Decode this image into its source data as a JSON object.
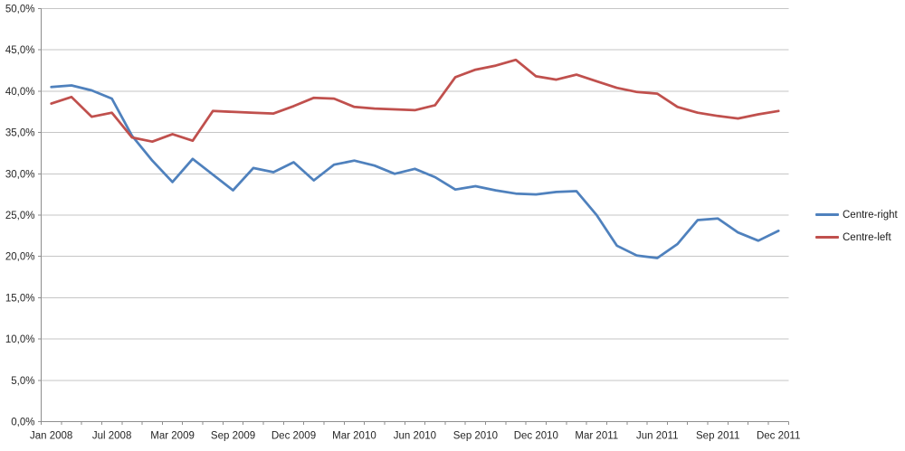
{
  "chart_data": {
    "type": "line",
    "title": "",
    "xlabel": "",
    "ylabel": "",
    "n_points": 37,
    "x_tick_labels": [
      "Jan 2008",
      "Jul 2008",
      "Mar 2009",
      "Sep 2009",
      "Dec 2009",
      "Mar 2010",
      "Jun 2010",
      "Sep 2010",
      "Dec 2010",
      "Mar 2011",
      "Jun 2011",
      "Sep 2011",
      "Dec 2011"
    ],
    "x_tick_label_every": 3,
    "y_axis": {
      "min": 0,
      "max": 50,
      "step": 5,
      "labels_top_to_bottom": [
        "50,0%",
        "45,0%",
        "40,0%",
        "35,0%",
        "30,0%",
        "25,0%",
        "20,0%",
        "15,0%",
        "10,0%",
        "5,0%",
        "0,0%"
      ]
    },
    "series": [
      {
        "name": "Centre-right",
        "color": "#4F81BD",
        "values": [
          40.5,
          40.7,
          40.1,
          39.1,
          34.6,
          31.6,
          29.0,
          31.8,
          29.9,
          28.0,
          30.7,
          30.2,
          31.4,
          29.2,
          31.1,
          31.6,
          31.0,
          30.0,
          30.6,
          29.6,
          28.1,
          28.5,
          28.0,
          27.6,
          27.5,
          27.8,
          27.9,
          25.0,
          21.3,
          20.1,
          19.8,
          21.5,
          24.4,
          24.6,
          22.9,
          21.9,
          23.1
        ]
      },
      {
        "name": "Centre-left",
        "color": "#C0504D",
        "values": [
          38.5,
          39.3,
          36.9,
          37.4,
          34.4,
          33.9,
          34.8,
          34.0,
          37.6,
          37.5,
          37.4,
          37.3,
          38.2,
          39.2,
          39.1,
          38.1,
          37.9,
          37.8,
          37.7,
          38.3,
          41.7,
          42.6,
          43.1,
          43.8,
          41.8,
          41.4,
          42.0,
          41.2,
          40.4,
          39.9,
          39.7,
          38.1,
          37.4,
          37.0,
          36.7,
          37.2,
          37.6
        ]
      }
    ],
    "legend": {
      "position": "right"
    },
    "grid": true,
    "colors": {
      "background": "#FFFFFF",
      "gridline": "#C6C6C6",
      "axis": "#8E8E8E",
      "tick": "#8E8E8E",
      "axis_text": "#262626"
    }
  }
}
